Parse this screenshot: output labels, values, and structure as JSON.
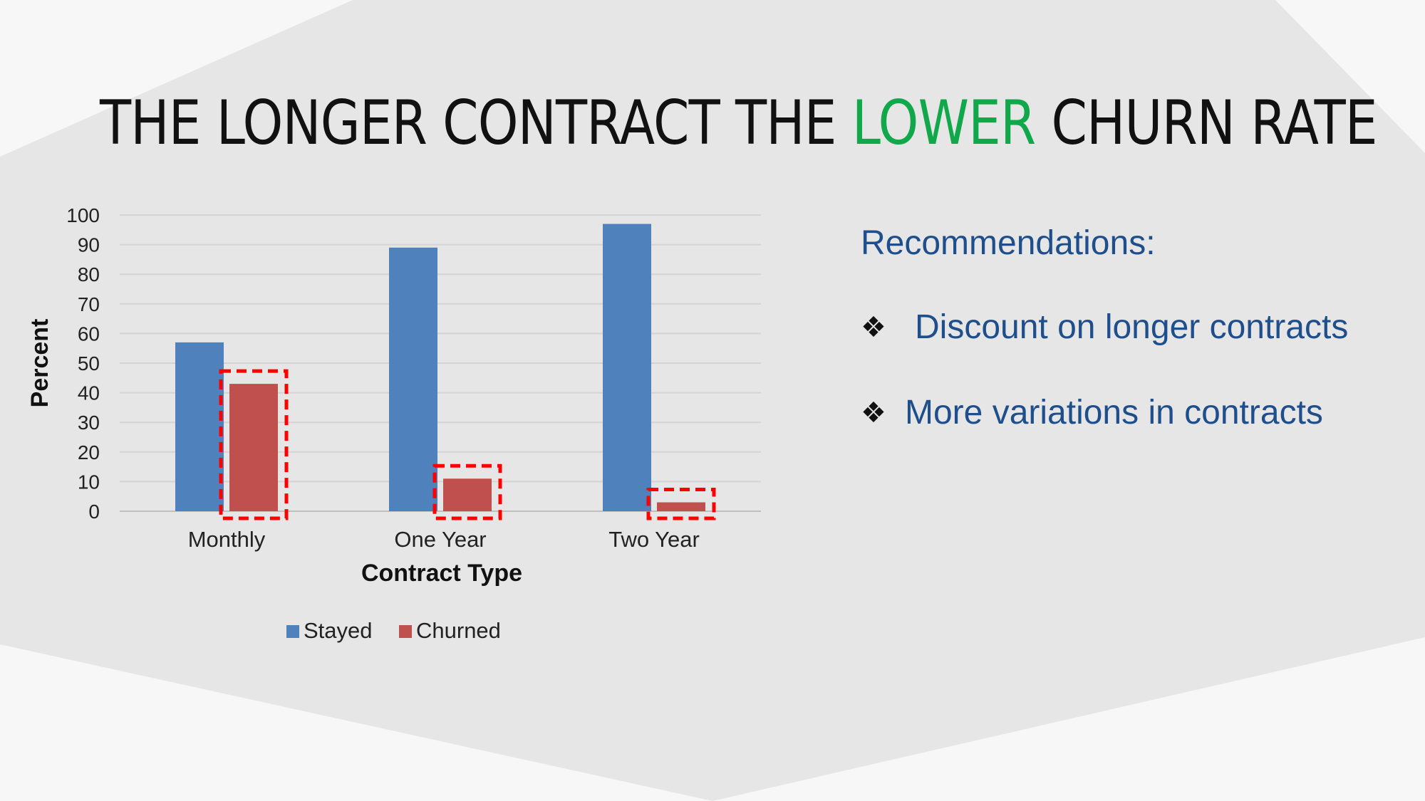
{
  "slide": {
    "title_parts": [
      "THE LONGER CONTRACT THE ",
      "LOWER",
      " CHURN RATE"
    ],
    "accent_color": "#10a84b",
    "recommendations": {
      "heading": "Recommendations:",
      "items": [
        "Discount on longer contracts",
        "More variations in contracts"
      ],
      "bullet_icon": "four-diamond-icon",
      "text_color": "#1f4e8c"
    }
  },
  "chart_data": {
    "type": "bar",
    "categories": [
      "Monthly",
      "One Year",
      "Two Year"
    ],
    "series": [
      {
        "name": "Stayed",
        "values": [
          57,
          89,
          97
        ],
        "color": "#4f81bd"
      },
      {
        "name": "Churned",
        "values": [
          43,
          11,
          3
        ],
        "color": "#c0504d"
      }
    ],
    "title": "",
    "xlabel": "Contract Type",
    "ylabel": "Percent",
    "ylim": [
      0,
      100
    ],
    "yticks": [
      0,
      10,
      20,
      30,
      40,
      50,
      60,
      70,
      80,
      90,
      100
    ],
    "grid": true,
    "legend": "bottom",
    "highlight": {
      "series": "Churned",
      "style": "red dashed box",
      "color": "#ff0000"
    }
  }
}
